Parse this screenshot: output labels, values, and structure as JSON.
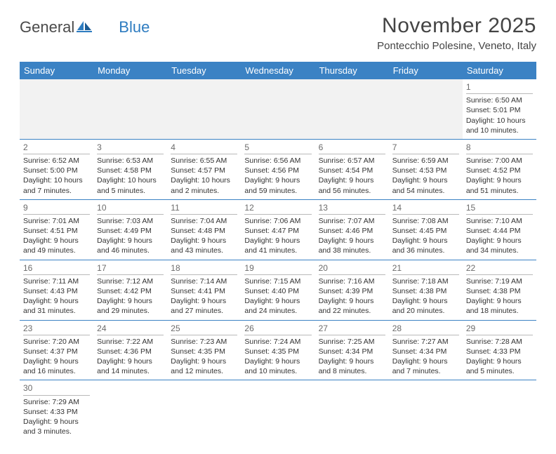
{
  "brand": {
    "text1": "General",
    "text2": "Blue"
  },
  "title": "November 2025",
  "subtitle": "Pontecchio Polesine, Veneto, Italy",
  "colors": {
    "header_bg": "#3b82c4",
    "header_fg": "#ffffff",
    "empty_bg": "#f2f2f2",
    "daynum_color": "#6b6b6b",
    "text_color": "#333333",
    "border_blue": "#3b82c4",
    "title_color": "#444444"
  },
  "weekdays": [
    "Sunday",
    "Monday",
    "Tuesday",
    "Wednesday",
    "Thursday",
    "Friday",
    "Saturday"
  ],
  "first_weekday_index": 6,
  "days": [
    {
      "n": 1,
      "sunrise": "6:50 AM",
      "sunset": "5:01 PM",
      "daylight": "10 hours and 10 minutes."
    },
    {
      "n": 2,
      "sunrise": "6:52 AM",
      "sunset": "5:00 PM",
      "daylight": "10 hours and 7 minutes."
    },
    {
      "n": 3,
      "sunrise": "6:53 AM",
      "sunset": "4:58 PM",
      "daylight": "10 hours and 5 minutes."
    },
    {
      "n": 4,
      "sunrise": "6:55 AM",
      "sunset": "4:57 PM",
      "daylight": "10 hours and 2 minutes."
    },
    {
      "n": 5,
      "sunrise": "6:56 AM",
      "sunset": "4:56 PM",
      "daylight": "9 hours and 59 minutes."
    },
    {
      "n": 6,
      "sunrise": "6:57 AM",
      "sunset": "4:54 PM",
      "daylight": "9 hours and 56 minutes."
    },
    {
      "n": 7,
      "sunrise": "6:59 AM",
      "sunset": "4:53 PM",
      "daylight": "9 hours and 54 minutes."
    },
    {
      "n": 8,
      "sunrise": "7:00 AM",
      "sunset": "4:52 PM",
      "daylight": "9 hours and 51 minutes."
    },
    {
      "n": 9,
      "sunrise": "7:01 AM",
      "sunset": "4:51 PM",
      "daylight": "9 hours and 49 minutes."
    },
    {
      "n": 10,
      "sunrise": "7:03 AM",
      "sunset": "4:49 PM",
      "daylight": "9 hours and 46 minutes."
    },
    {
      "n": 11,
      "sunrise": "7:04 AM",
      "sunset": "4:48 PM",
      "daylight": "9 hours and 43 minutes."
    },
    {
      "n": 12,
      "sunrise": "7:06 AM",
      "sunset": "4:47 PM",
      "daylight": "9 hours and 41 minutes."
    },
    {
      "n": 13,
      "sunrise": "7:07 AM",
      "sunset": "4:46 PM",
      "daylight": "9 hours and 38 minutes."
    },
    {
      "n": 14,
      "sunrise": "7:08 AM",
      "sunset": "4:45 PM",
      "daylight": "9 hours and 36 minutes."
    },
    {
      "n": 15,
      "sunrise": "7:10 AM",
      "sunset": "4:44 PM",
      "daylight": "9 hours and 34 minutes."
    },
    {
      "n": 16,
      "sunrise": "7:11 AM",
      "sunset": "4:43 PM",
      "daylight": "9 hours and 31 minutes."
    },
    {
      "n": 17,
      "sunrise": "7:12 AM",
      "sunset": "4:42 PM",
      "daylight": "9 hours and 29 minutes."
    },
    {
      "n": 18,
      "sunrise": "7:14 AM",
      "sunset": "4:41 PM",
      "daylight": "9 hours and 27 minutes."
    },
    {
      "n": 19,
      "sunrise": "7:15 AM",
      "sunset": "4:40 PM",
      "daylight": "9 hours and 24 minutes."
    },
    {
      "n": 20,
      "sunrise": "7:16 AM",
      "sunset": "4:39 PM",
      "daylight": "9 hours and 22 minutes."
    },
    {
      "n": 21,
      "sunrise": "7:18 AM",
      "sunset": "4:38 PM",
      "daylight": "9 hours and 20 minutes."
    },
    {
      "n": 22,
      "sunrise": "7:19 AM",
      "sunset": "4:38 PM",
      "daylight": "9 hours and 18 minutes."
    },
    {
      "n": 23,
      "sunrise": "7:20 AM",
      "sunset": "4:37 PM",
      "daylight": "9 hours and 16 minutes."
    },
    {
      "n": 24,
      "sunrise": "7:22 AM",
      "sunset": "4:36 PM",
      "daylight": "9 hours and 14 minutes."
    },
    {
      "n": 25,
      "sunrise": "7:23 AM",
      "sunset": "4:35 PM",
      "daylight": "9 hours and 12 minutes."
    },
    {
      "n": 26,
      "sunrise": "7:24 AM",
      "sunset": "4:35 PM",
      "daylight": "9 hours and 10 minutes."
    },
    {
      "n": 27,
      "sunrise": "7:25 AM",
      "sunset": "4:34 PM",
      "daylight": "9 hours and 8 minutes."
    },
    {
      "n": 28,
      "sunrise": "7:27 AM",
      "sunset": "4:34 PM",
      "daylight": "9 hours and 7 minutes."
    },
    {
      "n": 29,
      "sunrise": "7:28 AM",
      "sunset": "4:33 PM",
      "daylight": "9 hours and 5 minutes."
    },
    {
      "n": 30,
      "sunrise": "7:29 AM",
      "sunset": "4:33 PM",
      "daylight": "9 hours and 3 minutes."
    }
  ],
  "labels": {
    "sunrise": "Sunrise:",
    "sunset": "Sunset:",
    "daylight": "Daylight:"
  }
}
